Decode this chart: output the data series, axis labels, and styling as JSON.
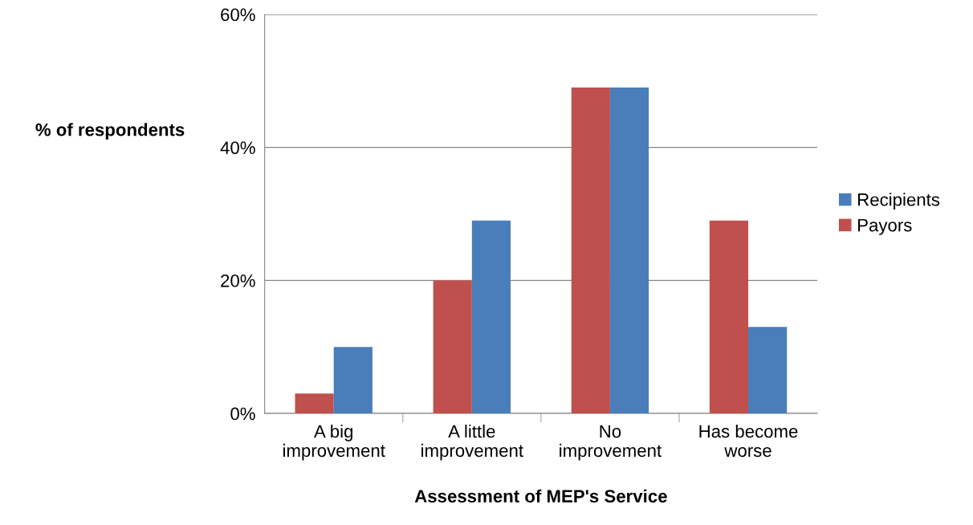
{
  "chart_data": {
    "type": "bar",
    "xlabel": "Assessment of MEP's Service",
    "ylabel": "% of respondents",
    "categories": [
      "A big\nimprovement",
      "A little\nimprovement",
      "No\nimprovement",
      "Has become\nworse"
    ],
    "series": [
      {
        "name": "Payors",
        "color": "#c0504d",
        "values": [
          3,
          20,
          49,
          29
        ]
      },
      {
        "name": "Recipients",
        "color": "#4a7ebb",
        "values": [
          10,
          29,
          49,
          13
        ]
      }
    ],
    "ylim": [
      0,
      60
    ],
    "yticks": [
      {
        "value": 0,
        "label": "0%"
      },
      {
        "value": 20,
        "label": "20%"
      },
      {
        "value": 40,
        "label": "40%"
      },
      {
        "value": 60,
        "label": "60%"
      }
    ],
    "grid": "y",
    "legend": "right"
  }
}
